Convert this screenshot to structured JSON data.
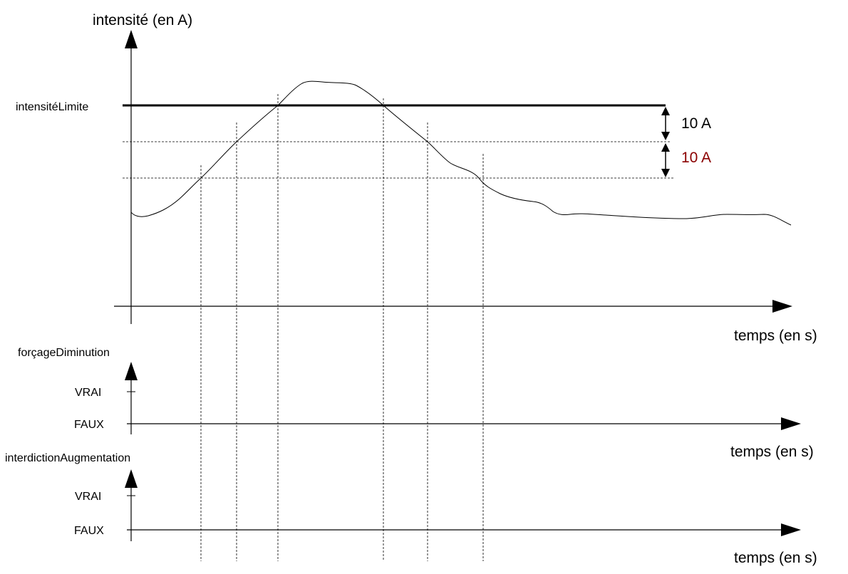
{
  "top_chart": {
    "y_axis_label": "intensité (en A)",
    "x_axis_label": "temps (en s)",
    "threshold_label": "intensitéLimite",
    "band_upper_label": "10 A",
    "band_lower_label": "10 A",
    "band_upper_color": "#000000",
    "band_lower_color": "#8b0000"
  },
  "signal_1": {
    "name": "forçageDiminution",
    "true_label": "VRAI",
    "false_label": "FAUX",
    "x_axis_label": "temps (en s)"
  },
  "signal_2": {
    "name": "interdictionAugmentation",
    "true_label": "VRAI",
    "false_label": "FAUX",
    "x_axis_label": "temps (en s)"
  }
}
